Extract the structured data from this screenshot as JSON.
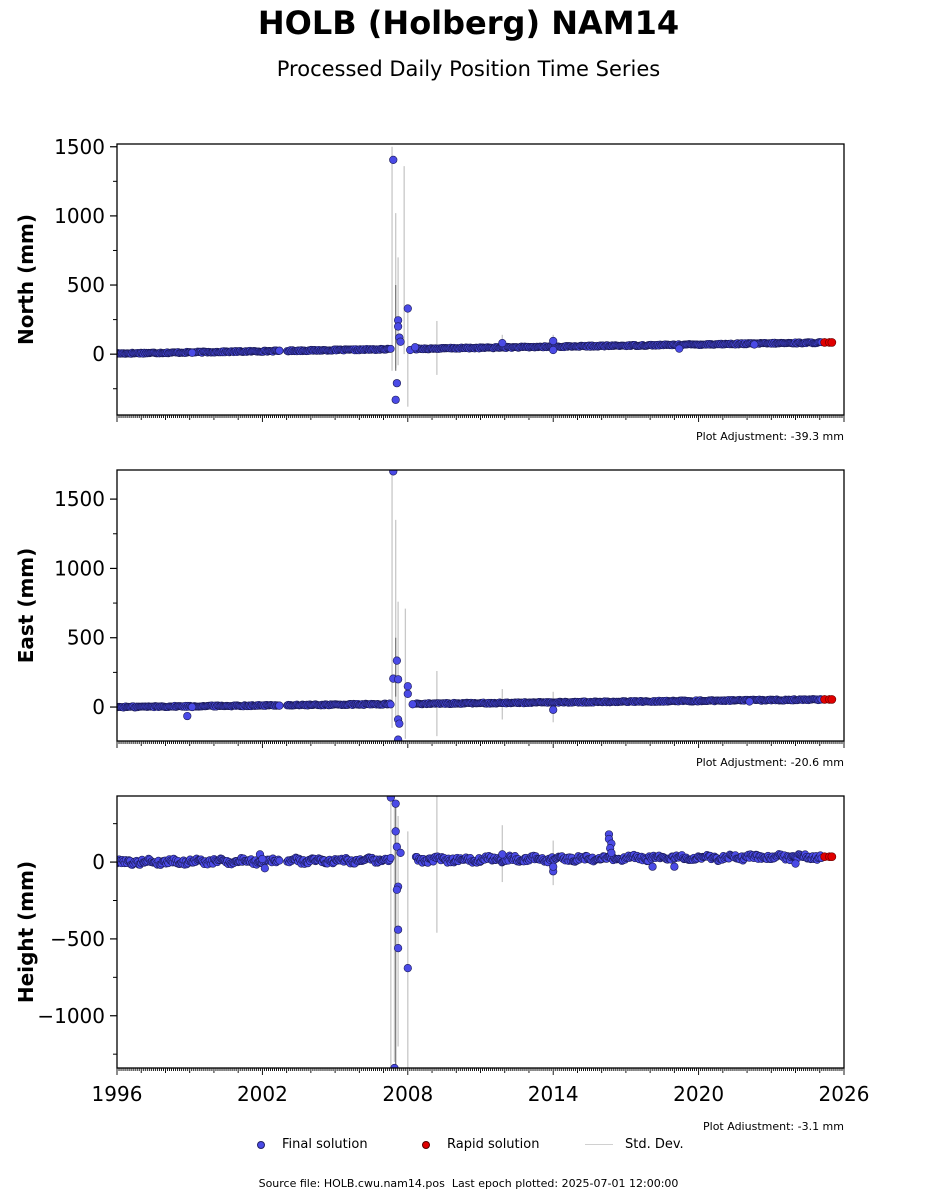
{
  "header": {
    "title": "HOLB (Holberg) NAM14",
    "subtitle": "Processed Daily Position Time Series"
  },
  "legend": {
    "final_label": "Final solution",
    "rapid_label": "Rapid solution",
    "stddev_label": "Std. Dev."
  },
  "footer": {
    "source_text": "Source file: HOLB.cwu.nam14.pos",
    "epoch_text": "Last epoch plotted: 2025-07-01 12:00:00"
  },
  "colors": {
    "final": "#4a4ae6",
    "final_edge": "#1a1a55",
    "rapid": "#e00000",
    "stddev": "#c8c8c8"
  },
  "chart_data": [
    {
      "type": "scatter",
      "ylabel": "North (mm)",
      "adjustment_text": "Plot Adjustment: -39.3 mm",
      "xlim": [
        1996,
        2026
      ],
      "ylim": [
        -440,
        1520
      ],
      "yticks": [
        0,
        500,
        1000,
        1500
      ],
      "ytick_labels": [
        "0",
        "500",
        "1000",
        "1500"
      ],
      "trend": {
        "x": [
          1996,
          2025.5
        ],
        "y": [
          5,
          85
        ]
      },
      "series": [
        {
          "name": "Final solution",
          "points": [
            [
              1999.1,
              10
            ],
            [
              2002.7,
              25
            ],
            [
              2007.4,
              1405
            ],
            [
              2007.5,
              -330
            ],
            [
              2007.55,
              -210
            ],
            [
              2007.6,
              245
            ],
            [
              2007.6,
              200
            ],
            [
              2007.65,
              120
            ],
            [
              2007.7,
              90
            ],
            [
              2008.0,
              330
            ],
            [
              2008.1,
              30
            ],
            [
              2008.3,
              50
            ],
            [
              2011.9,
              80
            ],
            [
              2014.0,
              95
            ],
            [
              2014.0,
              30
            ],
            [
              2019.2,
              40
            ],
            [
              2022.3,
              70
            ]
          ]
        },
        {
          "name": "Rapid solution",
          "points": [
            [
              2025.2,
              85
            ],
            [
              2025.4,
              85
            ],
            [
              2025.5,
              85
            ]
          ]
        },
        {
          "name": "Std. Dev.",
          "bars": [
            [
              2007.35,
              -120,
              1500
            ],
            [
              2007.5,
              -100,
              1020
            ],
            [
              2007.6,
              -80,
              700
            ],
            [
              2007.85,
              0,
              1360
            ],
            [
              2008.0,
              -380,
              330
            ],
            [
              2009.2,
              -150,
              240
            ],
            [
              2011.9,
              30,
              140
            ],
            [
              2014.0,
              10,
              140
            ]
          ]
        }
      ]
    },
    {
      "type": "scatter",
      "ylabel": "East (mm)",
      "adjustment_text": "Plot Adjustment: -20.6 mm",
      "xlim": [
        1996,
        2026
      ],
      "ylim": [
        -245,
        1710
      ],
      "yticks": [
        0,
        500,
        1000,
        1500
      ],
      "ytick_labels": [
        "0",
        "500",
        "1000",
        "1500"
      ],
      "trend": {
        "x": [
          1996,
          2025.5
        ],
        "y": [
          0,
          55
        ]
      },
      "series": [
        {
          "name": "Final solution",
          "points": [
            [
              1998.9,
              -65
            ],
            [
              1999.1,
              0
            ],
            [
              2002.7,
              10
            ],
            [
              2007.4,
              1700
            ],
            [
              2007.4,
              205
            ],
            [
              2007.55,
              335
            ],
            [
              2007.6,
              200
            ],
            [
              2007.6,
              -90
            ],
            [
              2007.65,
              -120
            ],
            [
              2007.6,
              -235
            ],
            [
              2008.0,
              150
            ],
            [
              2008.0,
              95
            ],
            [
              2008.2,
              20
            ],
            [
              2014.0,
              -20
            ],
            [
              2022.1,
              40
            ]
          ]
        },
        {
          "name": "Rapid solution",
          "points": [
            [
              2025.2,
              55
            ],
            [
              2025.4,
              55
            ],
            [
              2025.5,
              55
            ]
          ]
        },
        {
          "name": "Std. Dev.",
          "bars": [
            [
              2007.35,
              -150,
              1710
            ],
            [
              2007.5,
              -100,
              1350
            ],
            [
              2007.6,
              -90,
              760
            ],
            [
              2007.9,
              -230,
              710
            ],
            [
              2009.2,
              -210,
              260
            ],
            [
              2011.9,
              -90,
              130
            ],
            [
              2014.0,
              -110,
              110
            ]
          ]
        }
      ]
    },
    {
      "type": "scatter",
      "ylabel": "Height (mm)",
      "adjustment_text": "Plot Adjustment: -3.1 mm",
      "xlim": [
        1996,
        2026
      ],
      "ylim": [
        -1340,
        430
      ],
      "yticks": [
        -1000,
        -500,
        0
      ],
      "ytick_labels": [
        "−1000",
        "−500",
        "0"
      ],
      "xticks": [
        1996,
        2002,
        2008,
        2014,
        2020,
        2026
      ],
      "xtick_labels": [
        "1996",
        "2002",
        "2008",
        "2014",
        "2020",
        "2026"
      ],
      "trend": {
        "x": [
          1996,
          2025.5
        ],
        "y": [
          0,
          35
        ]
      },
      "series": [
        {
          "name": "Final solution",
          "points": [
            [
              2001.9,
              50
            ],
            [
              2002.0,
              20
            ],
            [
              2002.1,
              -40
            ],
            [
              2007.3,
              420
            ],
            [
              2007.5,
              380
            ],
            [
              2007.45,
              -1340
            ],
            [
              2007.5,
              200
            ],
            [
              2007.55,
              100
            ],
            [
              2007.6,
              -160
            ],
            [
              2007.55,
              -180
            ],
            [
              2007.6,
              -440
            ],
            [
              2007.6,
              -560
            ],
            [
              2007.7,
              60
            ],
            [
              2008.0,
              -690
            ],
            [
              2011.9,
              50
            ],
            [
              2014.0,
              -60
            ],
            [
              2014.0,
              -30
            ],
            [
              2016.3,
              180
            ],
            [
              2016.3,
              150
            ],
            [
              2016.4,
              120
            ],
            [
              2016.35,
              90
            ],
            [
              2016.4,
              60
            ],
            [
              2018.1,
              -30
            ],
            [
              2019.0,
              -30
            ],
            [
              2024.0,
              -10
            ]
          ]
        },
        {
          "name": "Rapid solution",
          "points": [
            [
              2025.2,
              35
            ],
            [
              2025.4,
              35
            ],
            [
              2025.5,
              35
            ]
          ]
        },
        {
          "name": "Std. Dev.",
          "bars": [
            [
              2007.3,
              -1340,
              430
            ],
            [
              2007.45,
              -1300,
              380
            ],
            [
              2007.6,
              -1200,
              300
            ],
            [
              2008.0,
              -1340,
              200
            ],
            [
              2009.2,
              -460,
              430
            ],
            [
              2011.9,
              -130,
              240
            ],
            [
              2014.0,
              -150,
              140
            ]
          ]
        }
      ]
    }
  ]
}
